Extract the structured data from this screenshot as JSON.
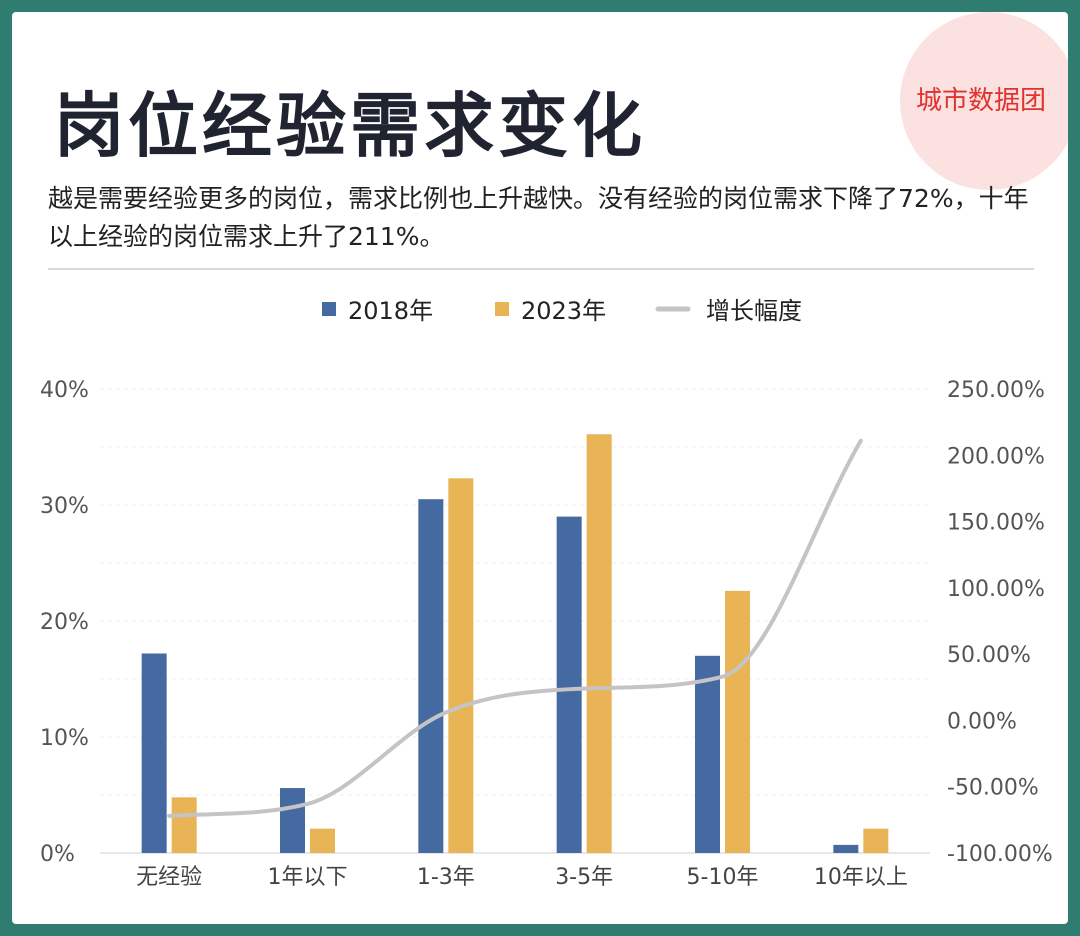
{
  "header": {
    "title": "岗位经验需求变化",
    "subtitle": "越是需要经验更多的岗位，需求比例也上升越快。没有经验的岗位需求下降了72%，十年以上经验的岗位需求上升了211%。",
    "brand": "城市数据团"
  },
  "chart_data": {
    "type": "bar",
    "categories": [
      "无经验",
      "1年以下",
      "1-3年",
      "3-5年",
      "5-10年",
      "10年以上"
    ],
    "series": [
      {
        "name": "2018年",
        "kind": "bar",
        "axis": "left",
        "color": "#456aa1",
        "values": [
          17.2,
          5.6,
          30.5,
          29.0,
          17.0,
          0.7
        ]
      },
      {
        "name": "2023年",
        "kind": "bar",
        "axis": "left",
        "color": "#e8b456",
        "values": [
          4.8,
          2.1,
          32.3,
          36.1,
          22.6,
          2.1
        ]
      },
      {
        "name": "增长幅度",
        "kind": "line",
        "axis": "right",
        "color": "#c4c4c4",
        "values": [
          -72,
          -63,
          6,
          24,
          33,
          211
        ]
      }
    ],
    "y_left": {
      "ticks": [
        "0%",
        "10%",
        "20%",
        "30%",
        "40%"
      ],
      "ylim": [
        0,
        40
      ]
    },
    "y_right": {
      "ticks": [
        "-100.00%",
        "-50.00%",
        "0.00%",
        "50.00%",
        "100.00%",
        "150.00%",
        "200.00%",
        "250.00%"
      ],
      "ylim": [
        -100,
        250
      ]
    },
    "grid": true,
    "legend_position": "top"
  }
}
